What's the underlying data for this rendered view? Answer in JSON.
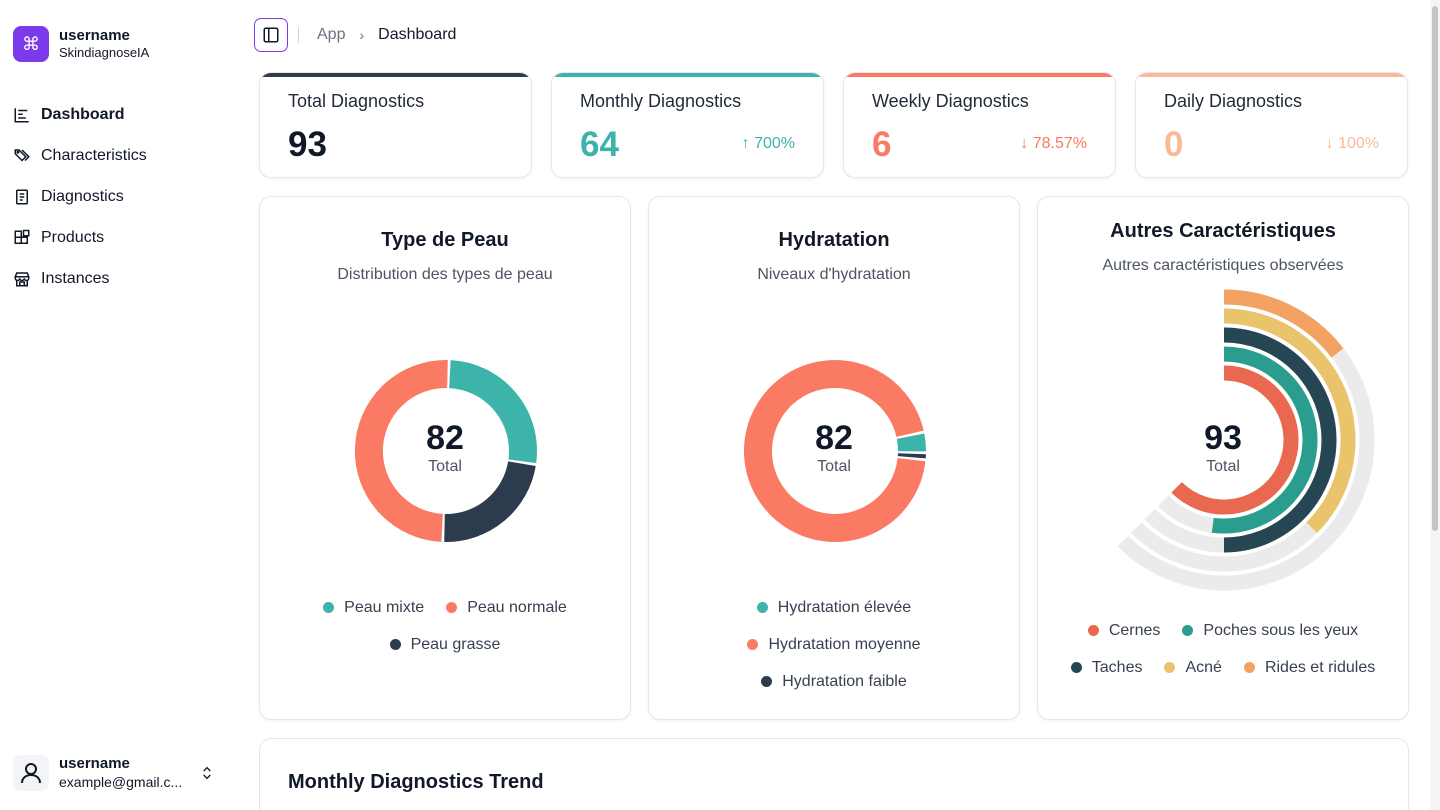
{
  "brand": {
    "name": "username",
    "subtitle": "SkindiagnoseIA",
    "logo_icon": "command-icon"
  },
  "nav": [
    {
      "label": "Dashboard",
      "icon": "chart-icon",
      "active": true
    },
    {
      "label": "Characteristics",
      "icon": "tags-icon",
      "active": false
    },
    {
      "label": "Diagnostics",
      "icon": "document-icon",
      "active": false
    },
    {
      "label": "Products",
      "icon": "blocks-icon",
      "active": false
    },
    {
      "label": "Instances",
      "icon": "store-icon",
      "active": false
    }
  ],
  "user": {
    "name": "username",
    "email": "example@gmail.c..."
  },
  "breadcrumb": {
    "root": "App",
    "current": "Dashboard"
  },
  "stats": [
    {
      "label": "Total Diagnostics",
      "value": "93",
      "change": "",
      "color": "#111827",
      "bar": "#2d3b4e"
    },
    {
      "label": "Monthly Diagnostics",
      "value": "64",
      "change": "↑ 700%",
      "color": "#3cb4a9",
      "bar": "#3cb4a9"
    },
    {
      "label": "Weekly Diagnostics",
      "value": "6",
      "change": "↓ 78.57%",
      "color": "#fa7a63",
      "bar": "#fa7a63"
    },
    {
      "label": "Daily Diagnostics",
      "value": "0",
      "change": "↓ 100%",
      "color": "#fbb99b",
      "bar": "#fbb99b"
    }
  ],
  "charts": {
    "skin_type": {
      "title": "Type de Peau",
      "subtitle": "Distribution des types de peau",
      "total": "82",
      "total_label": "Total",
      "legend_row1": [
        "Peau mixte",
        "Peau normale"
      ],
      "legend_row2": [
        "Peau grasse"
      ]
    },
    "hydration": {
      "title": "Hydratation",
      "subtitle": "Niveaux d'hydratation",
      "total": "82",
      "total_label": "Total",
      "legend": [
        "Hydratation élevée",
        "Hydratation moyenne",
        "Hydratation faible"
      ]
    },
    "other": {
      "title": "Autres Caractéristiques",
      "subtitle": "Autres caractéristiques observées",
      "total": "93",
      "total_label": "Total",
      "legend_row1": [
        "Cernes",
        "Poches sous les yeux"
      ],
      "legend_row2": [
        "Taches",
        "Acné",
        "Rides et ridules"
      ]
    }
  },
  "trend": {
    "title": "Monthly Diagnostics Trend"
  },
  "chart_data": [
    {
      "type": "pie",
      "title": "Type de Peau",
      "subtitle": "Distribution des types de peau",
      "series": [
        {
          "name": "Peau mixte",
          "value": 22,
          "color": "#3cb4a9"
        },
        {
          "name": "Peau grasse",
          "value": 19,
          "color": "#2d3b4e"
        },
        {
          "name": "Peau normale",
          "value": 41,
          "color": "#fa7a63"
        }
      ],
      "total": 82
    },
    {
      "type": "pie",
      "title": "Hydratation",
      "subtitle": "Niveaux d'hydratation",
      "series": [
        {
          "name": "Hydratation élevée",
          "value": 3,
          "color": "#3cb4a9"
        },
        {
          "name": "Hydratation faible",
          "value": 1,
          "color": "#2d3b4e"
        },
        {
          "name": "Hydratation moyenne",
          "value": 78,
          "color": "#fa7a63"
        }
      ],
      "total": 82
    },
    {
      "type": "bar",
      "title": "Autres Caractéristiques",
      "subtitle": "Autres caractéristiques observées",
      "orientation": "radial",
      "series": [
        {
          "name": "Cernes",
          "value": 60,
          "color": "#e8694f"
        },
        {
          "name": "Poches sous les yeux",
          "value": 50,
          "color": "#2a9d8f"
        },
        {
          "name": "Taches",
          "value": 48,
          "color": "#264653"
        },
        {
          "name": "Acné",
          "value": 36,
          "color": "#e9c46a"
        },
        {
          "name": "Rides et ridules",
          "value": 14,
          "color": "#f4a261"
        }
      ],
      "total": 93
    }
  ]
}
